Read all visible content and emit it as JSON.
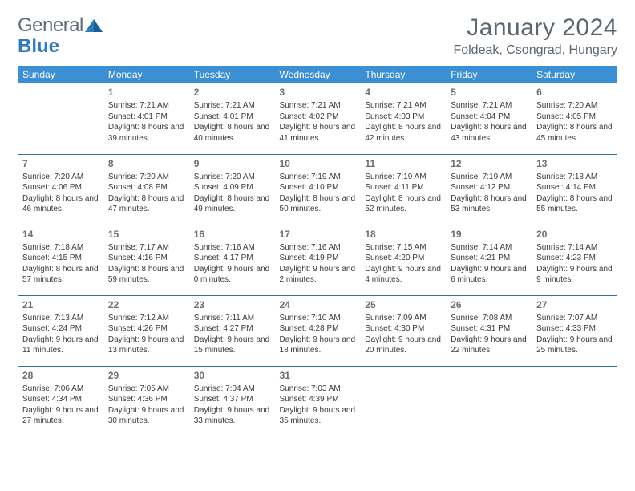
{
  "brand": {
    "part1": "General",
    "part2": "Blue"
  },
  "title": "January 2024",
  "location": "Foldeak, Csongrad, Hungary",
  "colors": {
    "header_bg": "#3b8fd4",
    "header_fg": "#ffffff",
    "rule": "#2f6fa8",
    "brand_grey": "#5e6a74",
    "brand_blue": "#2f7bbf",
    "title_grey": "#5b6670",
    "text": "#3a3a3a",
    "daynum": "#6b6f73"
  },
  "weekdays": [
    "Sunday",
    "Monday",
    "Tuesday",
    "Wednesday",
    "Thursday",
    "Friday",
    "Saturday"
  ],
  "weeks": [
    [
      null,
      {
        "n": "1",
        "sunrise": "7:21 AM",
        "sunset": "4:01 PM",
        "daylight": "8 hours and 39 minutes."
      },
      {
        "n": "2",
        "sunrise": "7:21 AM",
        "sunset": "4:01 PM",
        "daylight": "8 hours and 40 minutes."
      },
      {
        "n": "3",
        "sunrise": "7:21 AM",
        "sunset": "4:02 PM",
        "daylight": "8 hours and 41 minutes."
      },
      {
        "n": "4",
        "sunrise": "7:21 AM",
        "sunset": "4:03 PM",
        "daylight": "8 hours and 42 minutes."
      },
      {
        "n": "5",
        "sunrise": "7:21 AM",
        "sunset": "4:04 PM",
        "daylight": "8 hours and 43 minutes."
      },
      {
        "n": "6",
        "sunrise": "7:20 AM",
        "sunset": "4:05 PM",
        "daylight": "8 hours and 45 minutes."
      }
    ],
    [
      {
        "n": "7",
        "sunrise": "7:20 AM",
        "sunset": "4:06 PM",
        "daylight": "8 hours and 46 minutes."
      },
      {
        "n": "8",
        "sunrise": "7:20 AM",
        "sunset": "4:08 PM",
        "daylight": "8 hours and 47 minutes."
      },
      {
        "n": "9",
        "sunrise": "7:20 AM",
        "sunset": "4:09 PM",
        "daylight": "8 hours and 49 minutes."
      },
      {
        "n": "10",
        "sunrise": "7:19 AM",
        "sunset": "4:10 PM",
        "daylight": "8 hours and 50 minutes."
      },
      {
        "n": "11",
        "sunrise": "7:19 AM",
        "sunset": "4:11 PM",
        "daylight": "8 hours and 52 minutes."
      },
      {
        "n": "12",
        "sunrise": "7:19 AM",
        "sunset": "4:12 PM",
        "daylight": "8 hours and 53 minutes."
      },
      {
        "n": "13",
        "sunrise": "7:18 AM",
        "sunset": "4:14 PM",
        "daylight": "8 hours and 55 minutes."
      }
    ],
    [
      {
        "n": "14",
        "sunrise": "7:18 AM",
        "sunset": "4:15 PM",
        "daylight": "8 hours and 57 minutes."
      },
      {
        "n": "15",
        "sunrise": "7:17 AM",
        "sunset": "4:16 PM",
        "daylight": "8 hours and 59 minutes."
      },
      {
        "n": "16",
        "sunrise": "7:16 AM",
        "sunset": "4:17 PM",
        "daylight": "9 hours and 0 minutes."
      },
      {
        "n": "17",
        "sunrise": "7:16 AM",
        "sunset": "4:19 PM",
        "daylight": "9 hours and 2 minutes."
      },
      {
        "n": "18",
        "sunrise": "7:15 AM",
        "sunset": "4:20 PM",
        "daylight": "9 hours and 4 minutes."
      },
      {
        "n": "19",
        "sunrise": "7:14 AM",
        "sunset": "4:21 PM",
        "daylight": "9 hours and 6 minutes."
      },
      {
        "n": "20",
        "sunrise": "7:14 AM",
        "sunset": "4:23 PM",
        "daylight": "9 hours and 9 minutes."
      }
    ],
    [
      {
        "n": "21",
        "sunrise": "7:13 AM",
        "sunset": "4:24 PM",
        "daylight": "9 hours and 11 minutes."
      },
      {
        "n": "22",
        "sunrise": "7:12 AM",
        "sunset": "4:26 PM",
        "daylight": "9 hours and 13 minutes."
      },
      {
        "n": "23",
        "sunrise": "7:11 AM",
        "sunset": "4:27 PM",
        "daylight": "9 hours and 15 minutes."
      },
      {
        "n": "24",
        "sunrise": "7:10 AM",
        "sunset": "4:28 PM",
        "daylight": "9 hours and 18 minutes."
      },
      {
        "n": "25",
        "sunrise": "7:09 AM",
        "sunset": "4:30 PM",
        "daylight": "9 hours and 20 minutes."
      },
      {
        "n": "26",
        "sunrise": "7:08 AM",
        "sunset": "4:31 PM",
        "daylight": "9 hours and 22 minutes."
      },
      {
        "n": "27",
        "sunrise": "7:07 AM",
        "sunset": "4:33 PM",
        "daylight": "9 hours and 25 minutes."
      }
    ],
    [
      {
        "n": "28",
        "sunrise": "7:06 AM",
        "sunset": "4:34 PM",
        "daylight": "9 hours and 27 minutes."
      },
      {
        "n": "29",
        "sunrise": "7:05 AM",
        "sunset": "4:36 PM",
        "daylight": "9 hours and 30 minutes."
      },
      {
        "n": "30",
        "sunrise": "7:04 AM",
        "sunset": "4:37 PM",
        "daylight": "9 hours and 33 minutes."
      },
      {
        "n": "31",
        "sunrise": "7:03 AM",
        "sunset": "4:39 PM",
        "daylight": "9 hours and 35 minutes."
      },
      null,
      null,
      null
    ]
  ],
  "labels": {
    "sunrise": "Sunrise: ",
    "sunset": "Sunset: ",
    "daylight": "Daylight: "
  }
}
